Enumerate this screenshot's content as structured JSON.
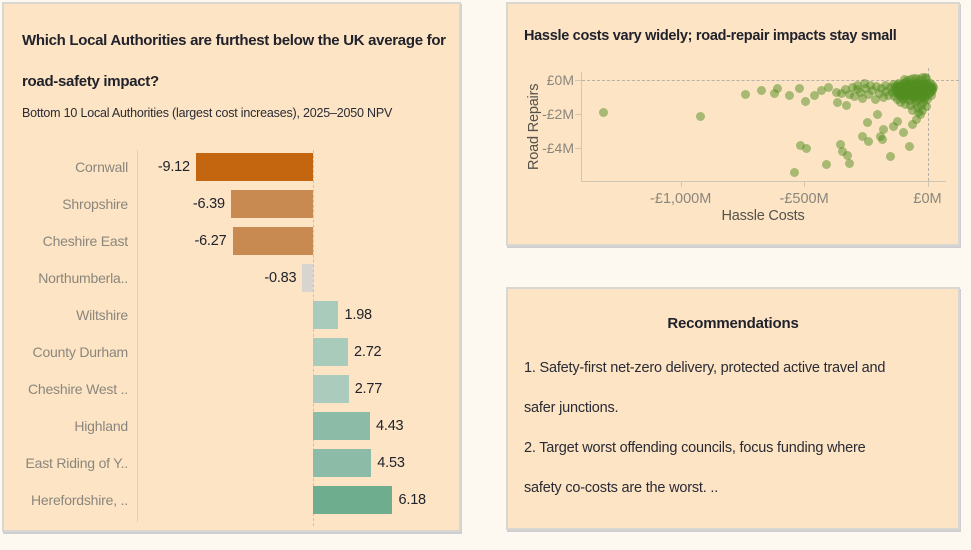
{
  "colors": {
    "page_bg": "#fdf8f0",
    "panel_bg": "#fce4c4",
    "panel_border": "#d9d7d2",
    "title_text": "#21222c",
    "muted_text": "#8b867d",
    "axis_title_text": "#55524c",
    "axis_line": "#cfc6b4",
    "dashed_line": "#b6b1a9",
    "scatter_marker": "#528e20"
  },
  "left_panel": {
    "title_lines": [
      "Which Local Authorities are furthest below the UK average for",
      "road-safety impact?"
    ],
    "subtitle": "Bottom 10 Local Authorities (largest cost increases), 2025–2050 NPV"
  },
  "scatter_panel": {
    "title": "Hassle costs vary widely; road-repair impacts stay small"
  },
  "recommendations_panel": {
    "title": "Recommendations",
    "items": [
      "1. Safety-first net-zero delivery, protected active travel and safer junctions.",
      "2. Target worst offending councils, focus funding where safety co-costs are the worst. .."
    ],
    "lines": [
      "1. Safety-first net-zero delivery, protected active travel and",
      "safer junctions.",
      "2. Target worst offending councils, focus funding where",
      "safety co-costs are the worst. .."
    ]
  },
  "chart_data": [
    {
      "type": "bar",
      "orientation": "horizontal",
      "title": "Which Local Authorities are furthest below the UK average for road-safety impact?",
      "subtitle": "Bottom 10 Local Authorities (largest cost increases), 2025–2050 NPV",
      "categories": [
        "Cornwall",
        "Shropshire",
        "Cheshire East",
        "Northumberla..",
        "Wiltshire",
        "County Durham",
        "Cheshire West ..",
        "Highland",
        "East Riding of Y..",
        "Herefordshire, .."
      ],
      "values": [
        -9.12,
        -6.39,
        -6.27,
        -0.83,
        1.98,
        2.72,
        2.77,
        4.43,
        4.53,
        6.18
      ],
      "value_labels": [
        "-9.12",
        "-6.39",
        "-6.27",
        "-0.83",
        "1.98",
        "2.72",
        "2.77",
        "4.43",
        "4.53",
        "6.18"
      ],
      "bar_colors": [
        "#c4660f",
        "#c98a52",
        "#c98a52",
        "#d8d4d0",
        "#a9cbbc",
        "#a9cbbc",
        "#abccbd",
        "#8cbca7",
        "#8cbca7",
        "#6fad8f"
      ],
      "xlim": [
        -13.7,
        11.2
      ],
      "zero_line": true,
      "grid": false
    },
    {
      "type": "scatter",
      "title": "Hassle costs vary widely; road-repair impacts stay small",
      "xlabel": "Hassle Costs",
      "ylabel": "Road Repairs",
      "x_ticks": [
        {
          "label": "-£1,000M",
          "value": -1000
        },
        {
          "label": "-£500M",
          "value": -500
        },
        {
          "label": "£0M",
          "value": 0
        }
      ],
      "y_ticks": [
        {
          "label": "£0M",
          "value": 0
        },
        {
          "label": "-£2M",
          "value": -2
        },
        {
          "label": "-£4M",
          "value": -4
        }
      ],
      "xlim": [
        -1400,
        75
      ],
      "ylim": [
        -5.95,
        0.5
      ],
      "zero_lines": true,
      "grid": false,
      "marker_color": "#528e20",
      "marker_opacity": 0.5,
      "points": [
        [
          -1315,
          -1.9
        ],
        [
          -920,
          -2.15
        ],
        [
          -737,
          -0.85
        ],
        [
          -671,
          -0.62
        ],
        [
          -620,
          -0.78
        ],
        [
          -610,
          -0.45
        ],
        [
          -560,
          -0.9
        ],
        [
          -540,
          -5.45
        ],
        [
          -520,
          -0.5
        ],
        [
          -516,
          -3.82
        ],
        [
          -494,
          -1.25
        ],
        [
          -490,
          -4.0
        ],
        [
          -457,
          -0.88
        ],
        [
          -430,
          -0.6
        ],
        [
          -411,
          -4.95
        ],
        [
          -400,
          -0.42
        ],
        [
          -368,
          -0.72
        ],
        [
          -365,
          -1.3
        ],
        [
          -352,
          -3.8
        ],
        [
          -348,
          -0.75
        ],
        [
          -343,
          -4.2
        ],
        [
          -332,
          -0.52
        ],
        [
          -330,
          -1.5
        ],
        [
          -323,
          -4.45
        ],
        [
          -318,
          -0.85
        ],
        [
          -315,
          -4.9
        ],
        [
          -305,
          -0.42
        ],
        [
          -295,
          -0.95
        ],
        [
          -285,
          -0.32
        ],
        [
          -283,
          -0.55
        ],
        [
          -272,
          -0.7
        ],
        [
          -263,
          -3.3
        ],
        [
          -262,
          -1.05
        ],
        [
          -255,
          -0.2
        ],
        [
          -250,
          -0.45
        ],
        [
          -242,
          -2.5
        ],
        [
          -240,
          -0.8
        ],
        [
          -238,
          -3.6
        ],
        [
          -232,
          -0.27
        ],
        [
          -222,
          -0.6
        ],
        [
          -212,
          -1.1
        ],
        [
          -205,
          -0.35
        ],
        [
          -202,
          -2.0
        ],
        [
          -196,
          -0.75
        ],
        [
          -190,
          -3.3
        ],
        [
          -188,
          -0.5
        ],
        [
          -181,
          -3.5
        ],
        [
          -180,
          -1.0
        ],
        [
          -178,
          -2.9
        ],
        [
          -172,
          -0.32
        ],
        [
          -165,
          -0.65
        ],
        [
          -158,
          -0.9
        ],
        [
          -150,
          -4.5
        ],
        [
          -150,
          -0.42
        ],
        [
          -144,
          -0.72
        ],
        [
          -137,
          -2.7
        ],
        [
          -120,
          -2.4
        ],
        [
          -97,
          -3.1
        ],
        [
          -75,
          -3.9
        ],
        [
          -60,
          -2.6
        ],
        [
          -45,
          -2.3
        ],
        [
          -30,
          -2.0
        ],
        [
          -138,
          -0.22
        ],
        [
          -135,
          -0.55
        ],
        [
          -132,
          -0.92
        ],
        [
          -128,
          -0.35
        ],
        [
          -125,
          -0.7
        ],
        [
          -122,
          -1.1
        ],
        [
          -118,
          -0.15
        ],
        [
          -115,
          -0.5
        ],
        [
          -112,
          -0.85
        ],
        [
          -108,
          -0.3
        ],
        [
          -105,
          -0.65
        ],
        [
          -102,
          -1.0
        ],
        [
          -98,
          -0.2
        ],
        [
          -95,
          -0.55
        ],
        [
          -92,
          -0.9
        ],
        [
          -88,
          -0.12
        ],
        [
          -85,
          -0.45
        ],
        [
          -82,
          -0.8
        ],
        [
          -78,
          -0.25
        ],
        [
          -75,
          -0.6
        ],
        [
          -72,
          -1.2
        ],
        [
          -68,
          -0.15
        ],
        [
          -65,
          -0.5
        ],
        [
          -62,
          -0.85
        ],
        [
          -58,
          -0.3
        ],
        [
          -55,
          -0.65
        ],
        [
          -52,
          -1.05
        ],
        [
          -48,
          -0.2
        ],
        [
          -45,
          -0.55
        ],
        [
          -42,
          -0.9
        ],
        [
          -38,
          -0.1
        ],
        [
          -35,
          -0.45
        ],
        [
          -32,
          -0.8
        ],
        [
          -28,
          -0.25
        ],
        [
          -25,
          -0.6
        ],
        [
          -22,
          -1.0
        ],
        [
          -18,
          -0.15
        ],
        [
          -15,
          -0.5
        ],
        [
          -12,
          -0.85
        ],
        [
          -8,
          -0.3
        ],
        [
          -5,
          -0.65
        ],
        [
          -2,
          -1.1
        ],
        [
          0,
          -0.2
        ],
        [
          2,
          -0.5
        ],
        [
          5,
          -0.8
        ],
        [
          8,
          -0.35
        ],
        [
          10,
          -0.7
        ],
        [
          12,
          -0.18
        ],
        [
          15,
          -0.45
        ],
        [
          18,
          -0.9
        ],
        [
          20,
          -0.6
        ],
        [
          22,
          -0.32
        ],
        [
          -110,
          -1.3
        ],
        [
          -90,
          -1.4
        ],
        [
          -70,
          -1.5
        ],
        [
          -50,
          -1.35
        ],
        [
          -40,
          -1.6
        ],
        [
          -25,
          -1.45
        ],
        [
          -15,
          -1.3
        ],
        [
          -5,
          -1.55
        ],
        [
          -60,
          -1.8
        ],
        [
          -35,
          -1.9
        ],
        [
          -20,
          -1.75
        ],
        [
          -98,
          -1.15
        ],
        [
          -80,
          -1.05
        ],
        [
          -45,
          -1.2
        ],
        [
          -30,
          -1.15
        ],
        [
          -12,
          -1.05
        ],
        [
          -3,
          0.1
        ],
        [
          -20,
          0.15
        ],
        [
          -45,
          0.1
        ],
        [
          -70,
          0.05
        ],
        [
          -95,
          0.08
        ],
        [
          -10,
          0.2
        ],
        [
          -33,
          0.06
        ],
        [
          -55,
          0.12
        ],
        [
          -83,
          -0.02
        ],
        [
          -7,
          -0.42
        ],
        [
          -17,
          -0.68
        ],
        [
          -27,
          -0.95
        ],
        [
          -37,
          -0.28
        ],
        [
          -47,
          -0.72
        ],
        [
          -57,
          -0.48
        ],
        [
          -67,
          -0.92
        ],
        [
          -77,
          -0.38
        ],
        [
          -87,
          -0.68
        ],
        [
          -97,
          -0.42
        ],
        [
          -107,
          -0.78
        ],
        [
          -117,
          -0.62
        ],
        [
          -127,
          -0.52
        ],
        [
          -13,
          -0.32
        ],
        [
          -23,
          -0.48
        ],
        [
          -33,
          -0.62
        ],
        [
          -43,
          -0.38
        ],
        [
          -53,
          -0.82
        ],
        [
          -63,
          -0.28
        ],
        [
          -73,
          -0.75
        ],
        [
          -83,
          -0.55
        ],
        [
          -93,
          -0.35
        ],
        [
          -103,
          -0.52
        ],
        [
          -113,
          -0.42
        ],
        [
          -123,
          -0.3
        ],
        [
          -6,
          -0.25
        ],
        [
          -16,
          -0.58
        ],
        [
          -26,
          -0.42
        ],
        [
          -36,
          -0.68
        ],
        [
          -46,
          -0.3
        ],
        [
          -56,
          -0.58
        ],
        [
          -66,
          -0.4
        ],
        [
          -76,
          -0.52
        ],
        [
          -86,
          -0.28
        ],
        [
          -96,
          -0.62
        ],
        [
          -106,
          -0.45
        ],
        [
          -116,
          -0.35
        ],
        [
          -126,
          -0.68
        ],
        [
          1,
          -0.35
        ],
        [
          6,
          -0.55
        ],
        [
          11,
          -0.42
        ],
        [
          16,
          -0.65
        ],
        [
          21,
          -0.48
        ],
        [
          25,
          -0.4
        ],
        [
          -9,
          -0.95
        ],
        [
          -19,
          -0.85
        ],
        [
          -29,
          -0.75
        ],
        [
          -39,
          -0.9
        ],
        [
          -49,
          -1.0
        ],
        [
          -59,
          -0.95
        ],
        [
          -69,
          -0.82
        ],
        [
          -79,
          -0.9
        ],
        [
          -89,
          -0.78
        ],
        [
          -99,
          -0.88
        ],
        [
          -109,
          -0.95
        ],
        [
          -119,
          -0.8
        ]
      ]
    }
  ]
}
